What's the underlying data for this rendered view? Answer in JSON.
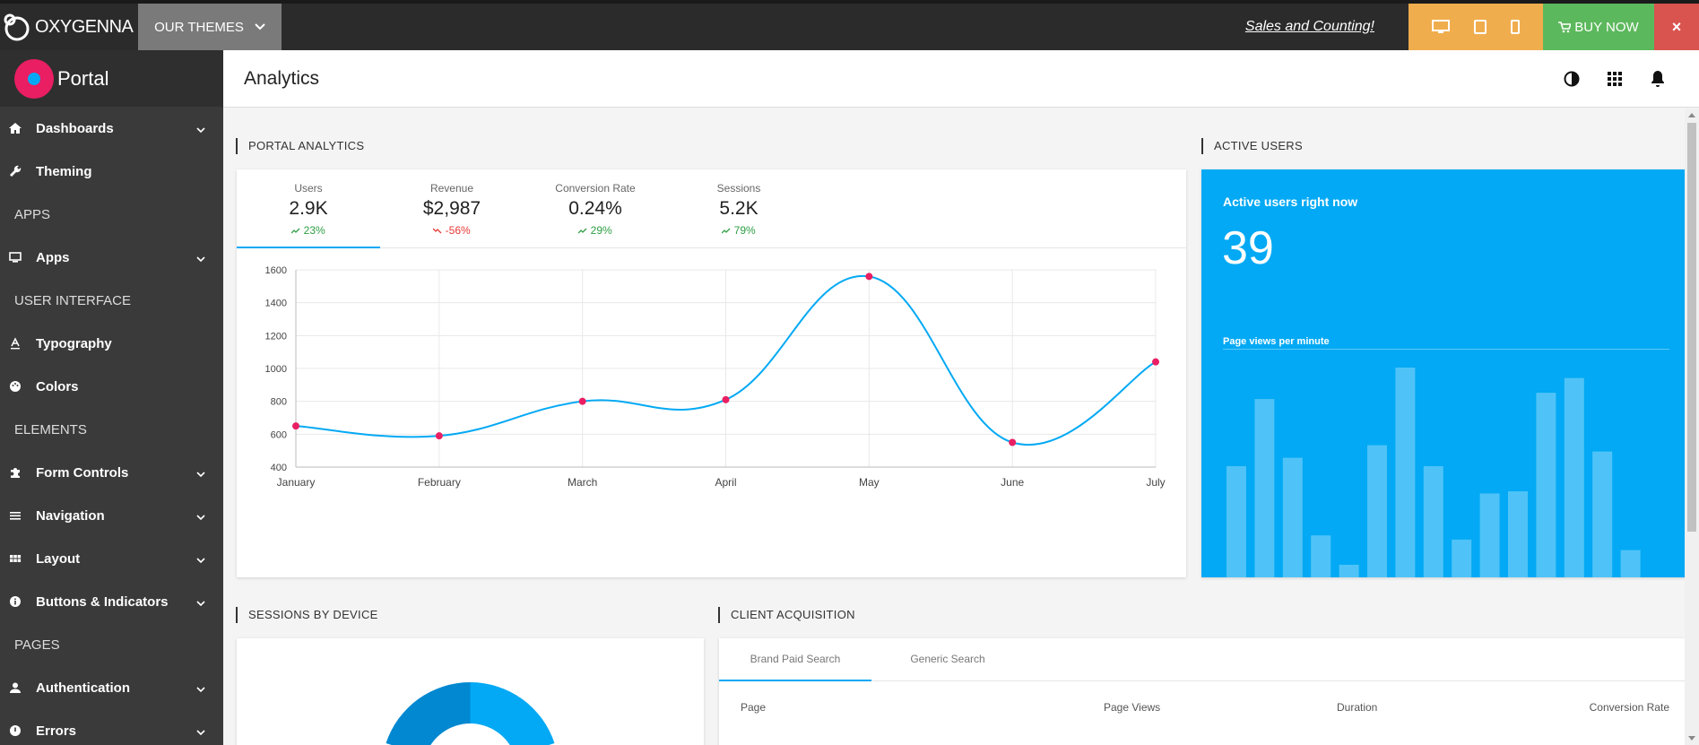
{
  "topbar": {
    "brand": "OXYGENNA",
    "themes_label": "OUR THEMES",
    "promo": "Sales and Counting!",
    "buy_label": "BUY NOW",
    "close_label": "×",
    "colors": {
      "devices": "#f0ad4e",
      "buy": "#5cb85c",
      "close": "#d9534f"
    }
  },
  "sidebar": {
    "app_name": "Portal",
    "items": [
      {
        "type": "item",
        "label": "Dashboards",
        "icon": "home-icon",
        "expandable": true
      },
      {
        "type": "item",
        "label": "Theming",
        "icon": "wrench-icon",
        "expandable": false
      },
      {
        "type": "section",
        "label": "APPS"
      },
      {
        "type": "item",
        "label": "Apps",
        "icon": "monitor-icon",
        "expandable": true
      },
      {
        "type": "section",
        "label": "USER INTERFACE"
      },
      {
        "type": "item",
        "label": "Typography",
        "icon": "text-format-icon",
        "expandable": false
      },
      {
        "type": "item",
        "label": "Colors",
        "icon": "palette-icon",
        "expandable": false
      },
      {
        "type": "section",
        "label": "ELEMENTS"
      },
      {
        "type": "item",
        "label": "Form Controls",
        "icon": "puzzle-icon",
        "expandable": true
      },
      {
        "type": "item",
        "label": "Navigation",
        "icon": "menu-icon",
        "expandable": true
      },
      {
        "type": "item",
        "label": "Layout",
        "icon": "grid-icon",
        "expandable": true
      },
      {
        "type": "item",
        "label": "Buttons & Indicators",
        "icon": "info-icon",
        "expandable": true
      },
      {
        "type": "section",
        "label": "PAGES"
      },
      {
        "type": "item",
        "label": "Authentication",
        "icon": "person-icon",
        "expandable": true
      },
      {
        "type": "item",
        "label": "Errors",
        "icon": "error-icon",
        "expandable": true
      }
    ]
  },
  "header": {
    "title": "Analytics",
    "icons": [
      "contrast-icon",
      "apps-grid-icon",
      "bell-icon"
    ]
  },
  "portal_analytics": {
    "label": "PORTAL ANALYTICS",
    "stats": [
      {
        "label": "Users",
        "value": "2.9K",
        "change": "23%",
        "trend": "up"
      },
      {
        "label": "Revenue",
        "value": "$2,987",
        "change": "-56%",
        "trend": "down"
      },
      {
        "label": "Conversion Rate",
        "value": "0.24%",
        "change": "29%",
        "trend": "up"
      },
      {
        "label": "Sessions",
        "value": "5.2K",
        "change": "79%",
        "trend": "up"
      }
    ]
  },
  "chart_data": {
    "type": "line",
    "categories": [
      "January",
      "February",
      "March",
      "April",
      "May",
      "June",
      "July"
    ],
    "values": [
      650,
      590,
      800,
      810,
      1560,
      550,
      1040
    ],
    "yticks": [
      400,
      600,
      800,
      1000,
      1200,
      1400,
      1600
    ],
    "ylim": [
      400,
      1600
    ],
    "grid": true,
    "line_color": "#03a9f4",
    "point_color": "#e91e63"
  },
  "active_users": {
    "label": "ACTIVE USERS",
    "title": "Active users right now",
    "value": "39",
    "subtitle": "Page views per minute",
    "bars": [
      0.53,
      0.85,
      0.57,
      0.2,
      0.06,
      0.63,
      1.0,
      0.53,
      0.18,
      0.4,
      0.41,
      0.88,
      0.95,
      0.6,
      0.13
    ],
    "color": "#03a9f4"
  },
  "sessions_by_device": {
    "label": "SESSIONS BY DEVICE"
  },
  "client_acquisition": {
    "label": "CLIENT ACQUISITION",
    "tabs": [
      "Brand Paid Search",
      "Generic Search"
    ],
    "columns": [
      "Page",
      "Page Views",
      "Duration",
      "Conversion Rate"
    ]
  }
}
